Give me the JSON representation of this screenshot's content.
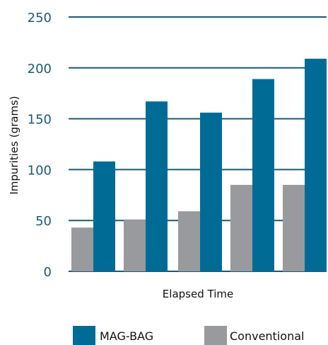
{
  "chart_data": {
    "type": "bar",
    "title": "",
    "xlabel": "Elapsed Time",
    "ylabel": "Impurities (grams)",
    "ylim": [
      0,
      250
    ],
    "yticks": [
      0,
      50,
      100,
      150,
      200,
      250
    ],
    "grid": "horizontal",
    "legend_position": "bottom",
    "categories": [
      "",
      "",
      "",
      "",
      ""
    ],
    "series": [
      {
        "name": "Conventional",
        "color": "#999a9e",
        "values": [
          43,
          51,
          59,
          85,
          85
        ]
      },
      {
        "name": "MAG-BAG",
        "color": "#006c96",
        "values": [
          108,
          167,
          156,
          189,
          209
        ]
      }
    ]
  }
}
